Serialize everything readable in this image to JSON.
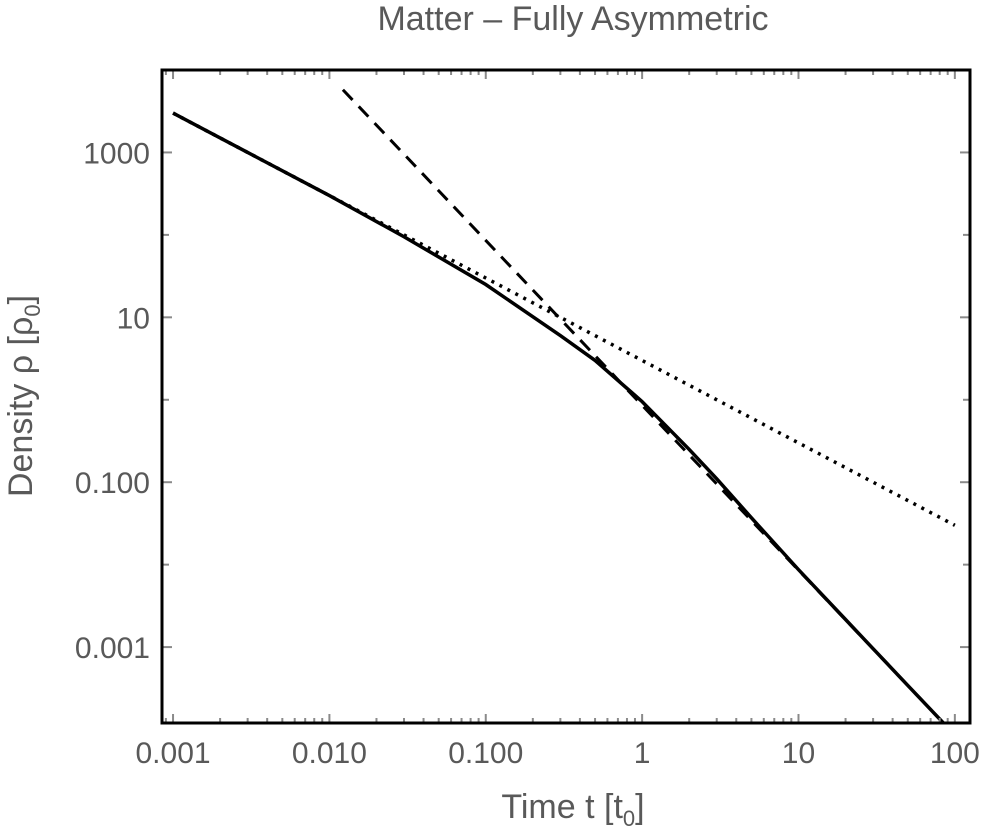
{
  "chart_data": {
    "type": "line",
    "title": "Matter – Fully Asymmetric",
    "xlabel": "Time  t [t",
    "xlabel_sub": "0",
    "xlabel_close": "]",
    "ylabel": "Density  ρ [ρ",
    "ylabel_sub": "0",
    "ylabel_close": "]",
    "xscale": "log",
    "yscale": "log",
    "xlim": [
      0.00085,
      125
    ],
    "ylim": [
      0.00012,
      10000
    ],
    "grid": false,
    "legend": "none",
    "x_ticks": [
      {
        "value": 0.001,
        "label": "0.001"
      },
      {
        "value": 0.01,
        "label": "0.010"
      },
      {
        "value": 0.1,
        "label": "0.100"
      },
      {
        "value": 1,
        "label": "1"
      },
      {
        "value": 10,
        "label": "10"
      },
      {
        "value": 100,
        "label": "100"
      }
    ],
    "y_ticks": [
      {
        "value": 1000,
        "label": "1000"
      },
      {
        "value": 10,
        "label": "10"
      },
      {
        "value": 0.1,
        "label": "0.100"
      },
      {
        "value": 0.001,
        "label": "0.001"
      }
    ],
    "series": [
      {
        "style": "solid",
        "x": [
          0.001,
          0.003,
          0.01,
          0.03,
          0.1,
          0.3,
          0.5,
          1,
          2,
          3,
          5,
          10,
          20,
          30,
          50,
          100
        ],
        "y": [
          3000,
          1000,
          300,
          95,
          25,
          6,
          3,
          0.95,
          0.25,
          0.11,
          0.037,
          0.0087,
          0.00216,
          0.000956,
          0.000343,
          8.57e-05
        ]
      },
      {
        "style": "dotted",
        "x": [
          0.001,
          0.01,
          0.1,
          1,
          10,
          100
        ],
        "y": [
          3000,
          300,
          30,
          3,
          0.3,
          0.03
        ]
      },
      {
        "style": "dashed",
        "x": [
          0.0122,
          0.1,
          1,
          10,
          100
        ],
        "y": [
          5760,
          85.7,
          0.857,
          0.00857,
          8.57e-05
        ]
      }
    ]
  }
}
